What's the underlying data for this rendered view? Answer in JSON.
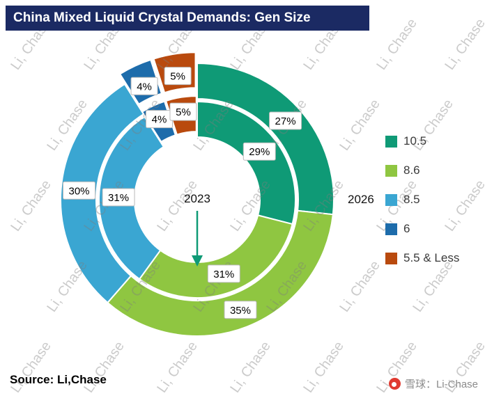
{
  "title": "China Mixed Liquid Crystal Demands: Gen Size",
  "source": "Source: Li,Chase",
  "watermark": {
    "text": "Li, Chase"
  },
  "footer": {
    "brand_text": "雪球：Li-Chase"
  },
  "chart_data": {
    "type": "donut",
    "title": "China Mixed Liquid Crystal Demands: Gen Size",
    "categories": [
      "10.5",
      "8.6",
      "8.5",
      "6",
      "5.5 & Less"
    ],
    "colors": [
      "#0f9a76",
      "#8fc641",
      "#3aa6d2",
      "#1d6cab",
      "#b94a0e"
    ],
    "rings": [
      {
        "name": "2023",
        "position": "inner",
        "values": [
          29,
          31,
          31,
          4,
          5
        ]
      },
      {
        "name": "2026",
        "position": "outer",
        "values": [
          27,
          35,
          30,
          4,
          5
        ]
      }
    ],
    "center_label": "2023",
    "outer_ring_label": "2026",
    "exploded_categories": [
      "6",
      "5.5 & Less"
    ],
    "legend_position": "right",
    "value_suffix": "%"
  }
}
